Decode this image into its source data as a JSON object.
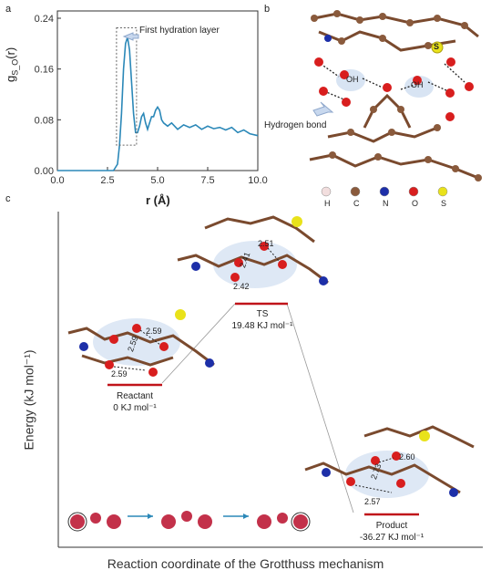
{
  "panels": {
    "a": "a",
    "b": "b",
    "c": "c"
  },
  "panel_a": {
    "annotation": "First hydration layer",
    "ylabel_main": "g",
    "ylabel_sub": "S_O",
    "ylabel_tail": "(r)",
    "xlabel": "r (Å)"
  },
  "panel_b": {
    "hbond_label": "Hydrogen bond",
    "oh_labels": [
      "OH",
      "OH"
    ],
    "s_atom": "S",
    "legend": [
      "H",
      "C",
      "N",
      "O",
      "S"
    ],
    "legend_colors": [
      "#f2dede",
      "#8a5a3c",
      "#1d2fa8",
      "#d81e1e",
      "#e9e21a"
    ]
  },
  "panel_c": {
    "ylabel": "Energy (kJ mol⁻¹)",
    "xlabel": "Reaction coordinate of the Grotthuss mechanism",
    "states": [
      {
        "name": "Reactant",
        "energy": "0 KJ mol⁻¹",
        "value": 0,
        "distances": [
          "2.59",
          "2.59",
          "2.59"
        ]
      },
      {
        "name": "TS",
        "energy": "19.48 KJ mol⁻¹",
        "value": 19.48,
        "distances": [
          "2.51",
          "2.41",
          "2.42"
        ]
      },
      {
        "name": "Product",
        "energy": "-36.27 KJ mol⁻¹",
        "value": -36.27,
        "distances": [
          "2.60",
          "2.73",
          "2.57"
        ]
      }
    ],
    "level_color": "#c0141a"
  },
  "chart_data": {
    "type": "line",
    "xlabel": "r (Å)",
    "ylabel": "g_S_O(r)",
    "xlim": [
      0,
      10
    ],
    "ylim": [
      0,
      0.24
    ],
    "xticks": [
      "0.0",
      "2.5",
      "5.0",
      "7.5",
      "10.0"
    ],
    "yticks": [
      "0.00",
      "0.08",
      "0.16",
      "0.24"
    ],
    "series_color": "#2b88b8",
    "x": [
      0,
      1,
      2,
      2.8,
      3.0,
      3.1,
      3.2,
      3.3,
      3.4,
      3.5,
      3.6,
      3.7,
      3.8,
      3.9,
      4.0,
      4.1,
      4.2,
      4.3,
      4.4,
      4.5,
      4.6,
      4.7,
      4.8,
      4.9,
      5.0,
      5.1,
      5.2,
      5.3,
      5.5,
      5.7,
      6.0,
      6.3,
      6.6,
      6.9,
      7.2,
      7.5,
      7.8,
      8.1,
      8.4,
      8.7,
      9.0,
      9.3,
      9.6,
      10.0
    ],
    "y": [
      0,
      0,
      0,
      0.0,
      0.01,
      0.04,
      0.09,
      0.16,
      0.2,
      0.21,
      0.19,
      0.14,
      0.09,
      0.06,
      0.06,
      0.07,
      0.085,
      0.09,
      0.075,
      0.065,
      0.075,
      0.085,
      0.085,
      0.095,
      0.1,
      0.095,
      0.08,
      0.075,
      0.07,
      0.075,
      0.065,
      0.072,
      0.068,
      0.072,
      0.065,
      0.07,
      0.066,
      0.068,
      0.064,
      0.068,
      0.06,
      0.064,
      0.058,
      0.055
    ]
  }
}
